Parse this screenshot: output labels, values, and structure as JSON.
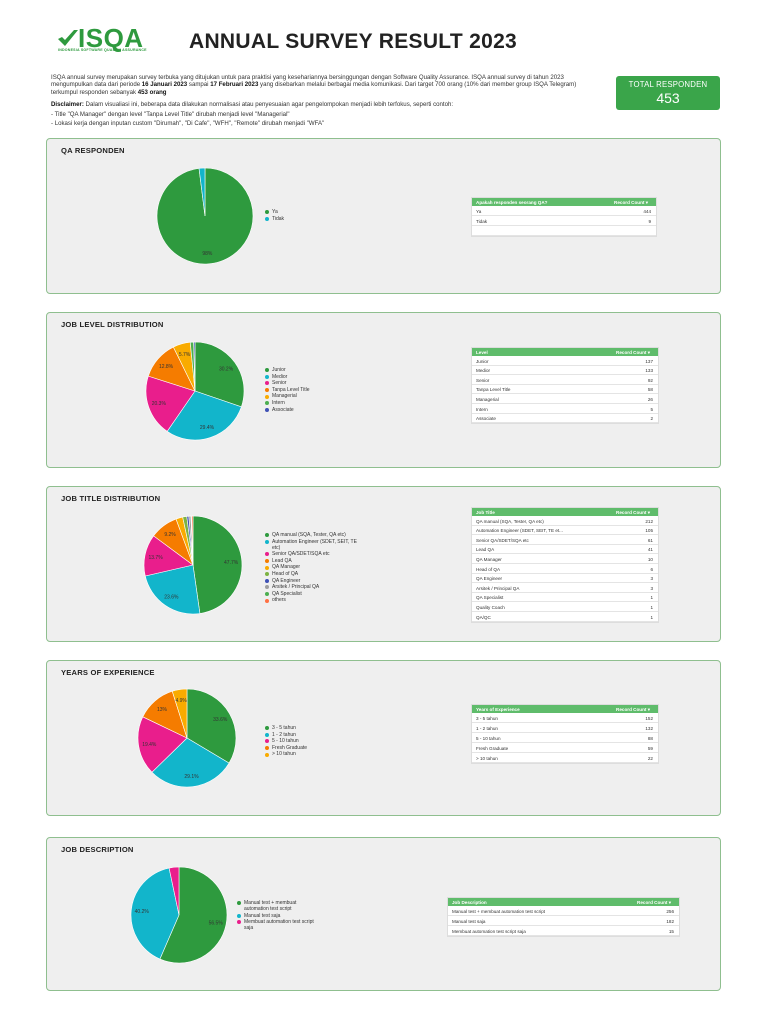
{
  "header": {
    "logo_text": "ISQA",
    "logo_tagline": "INDONESIA SOFTWARE QUALITY ASSURANCE",
    "title": "ANNUAL SURVEY RESULT 2023"
  },
  "intro": {
    "p1_a": "ISQA annual survey merupakan survey terbuka yang ditujukan untuk para praktisi yang kesehariannya bersinggungan dengan Software Quality Assurance. ISQA annual survey di tahun 2023 mengumpulkan data dari periode ",
    "p1_date1": "16 Januari 2023",
    "p1_mid": " sampai ",
    "p1_date2": "17 Februari 2023",
    "p1_b": " yang disebarkan melalui berbagai media komunikasi. Dari target 700 orang (10% dari member group ISQA Telegram) terkumpul responden sebanyak ",
    "p1_count": "453 orang",
    "disclaimer_label": "Disclaimer:",
    "disclaimer_text": " Dalam visualiasi ini, beberapa data dilakukan normalisasi atau penyesuaian agar pengelompokan menjadi lebih terfokus, seperti contoh:",
    "bullet1": "- Title \"QA Manager\" dengan level \"Tanpa Level Title\" dirubah menjadi level \"Managerial\"",
    "bullet2": "- Lokasi kerja dengan inputan custom \"Dirumah\", \"Di Cafe\", \"WFH\", \"Remote\" dirubah menjadi \"WFA\""
  },
  "total": {
    "label": "TOTAL RESPONDEN",
    "value": "453"
  },
  "table_value_header": "Record Count",
  "colors": [
    "#2e9a3e",
    "#12b5cb",
    "#e91e8c",
    "#f57c00",
    "#f9ab00",
    "#4caf50",
    "#3f51b5",
    "#7cb342",
    "#9e9e9e",
    "#ff7043"
  ],
  "chart_data": [
    {
      "type": "pie",
      "title": "QA RESPONDEN",
      "table_header": "Apakah responden seorang QA?",
      "categories": [
        "Ya",
        "Tidak"
      ],
      "values": [
        444,
        9
      ],
      "colors": [
        "#2e9a3e",
        "#12b5cb"
      ],
      "slice_labels": [
        "98%",
        ""
      ],
      "extra_rows": 1
    },
    {
      "type": "pie",
      "title": "JOB LEVEL DISTRIBUTION",
      "table_header": "Level",
      "categories": [
        "Junior",
        "Medior",
        "Senior",
        "Tanpa Level Title",
        "Managerial",
        "Intern",
        "Associate"
      ],
      "values": [
        137,
        133,
        92,
        58,
        26,
        5,
        2
      ],
      "colors": [
        "#2e9a3e",
        "#12b5cb",
        "#e91e8c",
        "#f57c00",
        "#f9ab00",
        "#4caf50",
        "#3f51b5"
      ],
      "slice_labels": [
        "30.2%",
        "29.4%",
        "20.3%",
        "12.8%",
        "5.7%",
        "",
        ""
      ],
      "extra_rows": 0
    },
    {
      "type": "pie",
      "title": "JOB TITLE DISTRIBUTION",
      "table_header": "Job Title",
      "categories": [
        "QA manual (SQA, Tester, QA etc)",
        "Automation Engineer (SDET, SEIT, TE etc)",
        "Senior QA/SDET/SQA etc",
        "Lead QA",
        "QA Manager",
        "Head of QA",
        "QA Engineer",
        "Arsitek / Principal QA",
        "QA Specialist",
        "others"
      ],
      "table_rows": [
        {
          "label": "QA manual (SQA, Tester, QA etc)",
          "value": 212
        },
        {
          "label": "Automation Engineer (SDET, SEIT, TE et...",
          "value": 105
        },
        {
          "label": "Senior QA/SDET/SQA etc",
          "value": 61
        },
        {
          "label": "Lead QA",
          "value": 41
        },
        {
          "label": "QA Manager",
          "value": 10
        },
        {
          "label": "Head of QA",
          "value": 6
        },
        {
          "label": "QA Engineer",
          "value": 3
        },
        {
          "label": "Arsitek / Principal QA",
          "value": 3
        },
        {
          "label": "QA Specialist",
          "value": 1
        },
        {
          "label": "Quality Coach",
          "value": 1
        },
        {
          "label": "QA/QC",
          "value": 1
        }
      ],
      "values": [
        212,
        105,
        61,
        41,
        10,
        6,
        3,
        3,
        1,
        2
      ],
      "colors": [
        "#2e9a3e",
        "#12b5cb",
        "#e91e8c",
        "#f57c00",
        "#f9ab00",
        "#7cb342",
        "#3f51b5",
        "#9e9e9e",
        "#4caf50",
        "#ff7043"
      ],
      "slice_labels": [
        "47.7%",
        "23.6%",
        "13.7%",
        "9.2%",
        "",
        "",
        "",
        "",
        "",
        ""
      ],
      "extra_rows": 0
    },
    {
      "type": "pie",
      "title": "YEARS OF EXPERIENCE",
      "table_header": "Years of Experience",
      "categories": [
        "3 - 5 tahun",
        "1 - 2 tahun",
        "5 - 10 tahun",
        "Fresh Graduate",
        "> 10 tahun"
      ],
      "values": [
        152,
        132,
        88,
        59,
        22
      ],
      "colors": [
        "#2e9a3e",
        "#12b5cb",
        "#e91e8c",
        "#f57c00",
        "#f9ab00"
      ],
      "slice_labels": [
        "33.6%",
        "29.1%",
        "19.4%",
        "13%",
        "4.9%"
      ],
      "extra_rows": 0
    },
    {
      "type": "pie",
      "title": "JOB DESCRIPTION",
      "table_header": "Job Description",
      "categories": [
        "Manual test + membuat automation test script",
        "Manual test saja",
        "Membuat automation test script saja"
      ],
      "values": [
        256,
        182,
        15
      ],
      "colors": [
        "#2e9a3e",
        "#12b5cb",
        "#e91e8c"
      ],
      "slice_labels": [
        "56.5%",
        "40.2%",
        ""
      ],
      "extra_rows": 0
    }
  ]
}
